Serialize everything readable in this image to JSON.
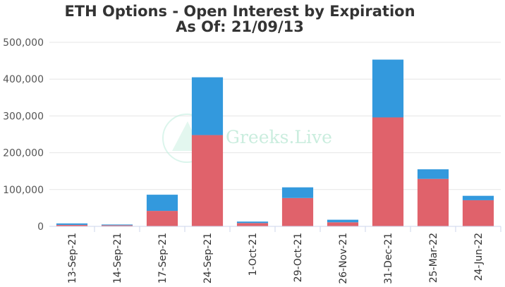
{
  "chart_data": {
    "type": "bar",
    "stacked": true,
    "title": "ETH Options - Open Interest by Expiration",
    "subtitle": "As Of: 21/09/13",
    "categories": [
      "13-Sep-21",
      "14-Sep-21",
      "17-Sep-21",
      "24-Sep-21",
      "1-Oct-21",
      "29-Oct-21",
      "26-Nov-21",
      "31-Dec-21",
      "25-Mar-22",
      "24-Jun-22"
    ],
    "series": [
      {
        "values": [
          4000,
          3000,
          42000,
          248000,
          9000,
          77000,
          11000,
          296000,
          129000,
          71000
        ],
        "color": "#e0626b"
      },
      {
        "values": [
          4000,
          2000,
          44000,
          157000,
          4000,
          29000,
          7000,
          157000,
          26000,
          12000
        ],
        "color": "#3399dd"
      }
    ],
    "ylim": [
      0,
      500000
    ],
    "yticks": [
      "0",
      "100,000",
      "200,000",
      "300,000",
      "400,000",
      "500,000"
    ],
    "grid": true,
    "legend": "none",
    "watermark": "Greeks.Live"
  }
}
